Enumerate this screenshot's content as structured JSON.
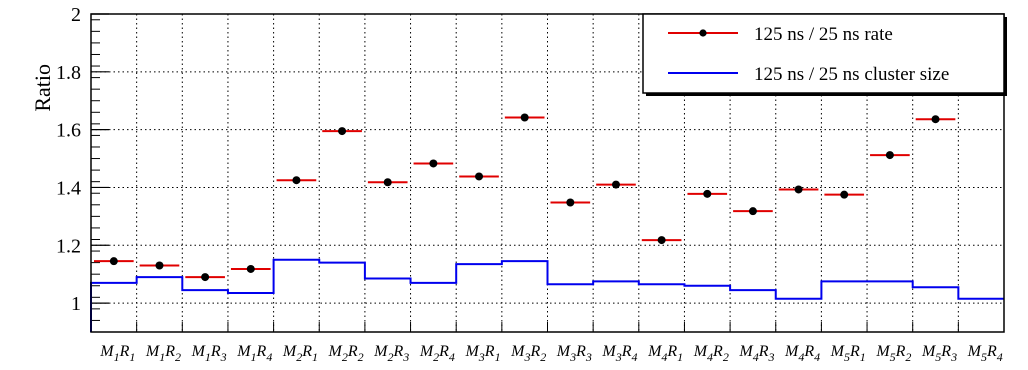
{
  "chart_data": {
    "type": "scatter",
    "ylabel": "Ratio",
    "xlabel": "",
    "ylim": [
      0.9,
      2.0
    ],
    "yticks": [
      "1",
      "1.2",
      "1.4",
      "1.6",
      "1.8",
      "2"
    ],
    "grid": true,
    "legend_position": "top-right",
    "categories": [
      {
        "m": "M",
        "i1": "1",
        "r": "R",
        "i2": "1"
      },
      {
        "m": "M",
        "i1": "1",
        "r": "R",
        "i2": "2"
      },
      {
        "m": "M",
        "i1": "1",
        "r": "R",
        "i2": "3"
      },
      {
        "m": "M",
        "i1": "1",
        "r": "R",
        "i2": "4"
      },
      {
        "m": "M",
        "i1": "2",
        "r": "R",
        "i2": "1"
      },
      {
        "m": "M",
        "i1": "2",
        "r": "R",
        "i2": "2"
      },
      {
        "m": "M",
        "i1": "2",
        "r": "R",
        "i2": "3"
      },
      {
        "m": "M",
        "i1": "2",
        "r": "R",
        "i2": "4"
      },
      {
        "m": "M",
        "i1": "3",
        "r": "R",
        "i2": "1"
      },
      {
        "m": "M",
        "i1": "3",
        "r": "R",
        "i2": "2"
      },
      {
        "m": "M",
        "i1": "3",
        "r": "R",
        "i2": "3"
      },
      {
        "m": "M",
        "i1": "3",
        "r": "R",
        "i2": "4"
      },
      {
        "m": "M",
        "i1": "4",
        "r": "R",
        "i2": "1"
      },
      {
        "m": "M",
        "i1": "4",
        "r": "R",
        "i2": "2"
      },
      {
        "m": "M",
        "i1": "4",
        "r": "R",
        "i2": "3"
      },
      {
        "m": "M",
        "i1": "4",
        "r": "R",
        "i2": "4"
      },
      {
        "m": "M",
        "i1": "5",
        "r": "R",
        "i2": "1"
      },
      {
        "m": "M",
        "i1": "5",
        "r": "R",
        "i2": "2"
      },
      {
        "m": "M",
        "i1": "5",
        "r": "R",
        "i2": "3"
      },
      {
        "m": "M",
        "i1": "5",
        "r": "R",
        "i2": "4"
      }
    ],
    "series": [
      {
        "name": "125 ns / 25 ns rate",
        "style": "markers-with-horizontal-bars",
        "color": "#e00000",
        "marker_color": "#000000",
        "values": [
          1.145,
          1.13,
          1.09,
          1.118,
          1.425,
          1.595,
          1.418,
          1.483,
          1.438,
          1.642,
          1.348,
          1.41,
          1.218,
          1.378,
          1.318,
          1.393,
          1.375,
          1.512,
          1.636,
          null
        ]
      },
      {
        "name": "125 ns / 25 ns cluster size",
        "style": "step",
        "color": "#0000ee",
        "values": [
          1.07,
          1.09,
          1.045,
          1.035,
          1.15,
          1.14,
          1.085,
          1.07,
          1.135,
          1.145,
          1.065,
          1.075,
          1.065,
          1.06,
          1.045,
          1.015,
          1.075,
          1.075,
          1.055,
          1.015
        ]
      }
    ]
  }
}
